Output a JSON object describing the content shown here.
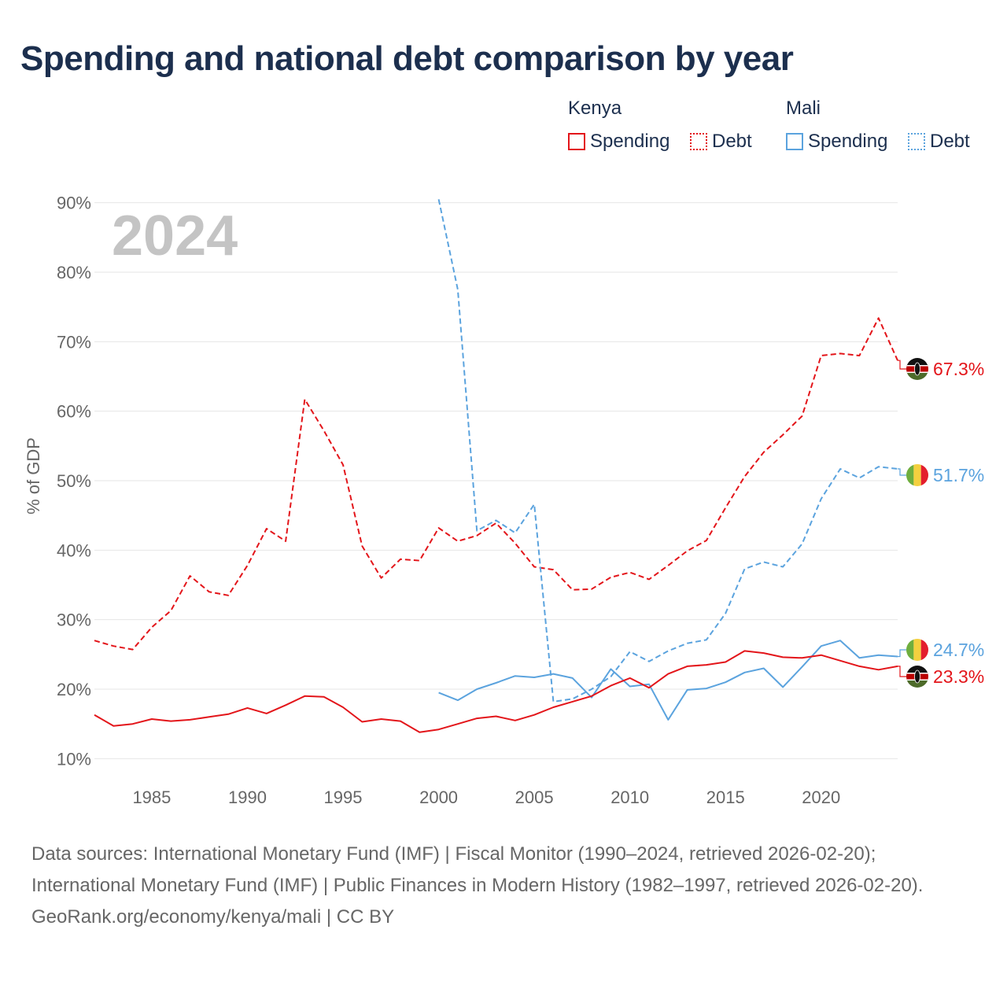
{
  "chart_data": {
    "type": "line",
    "title": "Spending and national debt comparison by year",
    "year_label": "2024",
    "ylabel": "% of GDP",
    "xlabel": "",
    "ylim": [
      8,
      92
    ],
    "xlim": [
      1982,
      2024
    ],
    "y_ticks": [
      10,
      20,
      30,
      40,
      50,
      60,
      70,
      80,
      90
    ],
    "y_tick_labels": [
      "10%",
      "20%",
      "30%",
      "40%",
      "50%",
      "60%",
      "70%",
      "80%",
      "90%"
    ],
    "x_ticks": [
      1985,
      1990,
      1995,
      2000,
      2005,
      2010,
      2015,
      2020
    ],
    "x_tick_labels": [
      "1985",
      "1990",
      "1995",
      "2000",
      "2005",
      "2010",
      "2015",
      "2020"
    ],
    "legend": {
      "groups": [
        {
          "name": "Kenya",
          "items": [
            "Spending",
            "Debt"
          ]
        },
        {
          "name": "Mali",
          "items": [
            "Spending",
            "Debt"
          ]
        }
      ]
    },
    "series": [
      {
        "name": "Kenya Debt",
        "country": "Kenya",
        "measure": "Debt",
        "color": "#e3151a",
        "dashed": true,
        "x": [
          1982,
          1983,
          1984,
          1985,
          1986,
          1987,
          1988,
          1989,
          1990,
          1991,
          1992,
          1993,
          1994,
          1995,
          1996,
          1997,
          1998,
          1999,
          2000,
          2001,
          2002,
          2003,
          2004,
          2005,
          2006,
          2007,
          2008,
          2009,
          2010,
          2011,
          2012,
          2013,
          2014,
          2015,
          2016,
          2017,
          2018,
          2019,
          2020,
          2021,
          2022,
          2023,
          2024
        ],
        "values": [
          27.0,
          26.2,
          25.7,
          28.9,
          31.3,
          36.3,
          34.0,
          33.5,
          37.8,
          43.1,
          41.3,
          61.7,
          57.2,
          52.3,
          40.6,
          36.0,
          38.7,
          38.5,
          43.2,
          41.3,
          42.1,
          43.9,
          41.0,
          37.6,
          37.2,
          34.3,
          34.4,
          36.1,
          36.8,
          35.8,
          37.8,
          39.9,
          41.4,
          46.1,
          50.6,
          54.1,
          56.6,
          59.3,
          68.0,
          68.3,
          68.0,
          73.4,
          67.3
        ],
        "end_label": "67.3%"
      },
      {
        "name": "Mali Debt",
        "country": "Mali",
        "measure": "Debt",
        "color": "#5ba3de",
        "dashed": true,
        "x": [
          2000,
          2001,
          2002,
          2003,
          2004,
          2005,
          2006,
          2007,
          2008,
          2009,
          2010,
          2011,
          2012,
          2013,
          2014,
          2015,
          2016,
          2017,
          2018,
          2019,
          2020,
          2021,
          2022,
          2023,
          2024
        ],
        "values": [
          90.5,
          77.5,
          42.8,
          44.3,
          42.5,
          46.6,
          18.2,
          18.6,
          20.0,
          21.8,
          25.4,
          24.0,
          25.5,
          26.6,
          27.1,
          30.9,
          37.3,
          38.3,
          37.6,
          40.9,
          47.4,
          51.7,
          50.4,
          52.0,
          51.7
        ],
        "end_label": "51.7%"
      },
      {
        "name": "Mali Spending",
        "country": "Mali",
        "measure": "Spending",
        "color": "#5ba3de",
        "dashed": false,
        "x": [
          2000,
          2001,
          2002,
          2003,
          2004,
          2005,
          2006,
          2007,
          2008,
          2009,
          2010,
          2011,
          2012,
          2013,
          2014,
          2015,
          2016,
          2017,
          2018,
          2019,
          2020,
          2021,
          2022,
          2023,
          2024
        ],
        "values": [
          19.5,
          18.4,
          20.0,
          20.9,
          21.9,
          21.7,
          22.2,
          21.6,
          18.8,
          22.9,
          20.4,
          20.7,
          15.6,
          19.9,
          20.1,
          21.0,
          22.4,
          23.0,
          20.3,
          23.2,
          26.2,
          27.0,
          24.5,
          24.9,
          24.7
        ],
        "end_label": "24.7%"
      },
      {
        "name": "Kenya Spending",
        "country": "Kenya",
        "measure": "Spending",
        "color": "#e3151a",
        "dashed": false,
        "x": [
          1982,
          1983,
          1984,
          1985,
          1986,
          1987,
          1988,
          1989,
          1990,
          1991,
          1992,
          1993,
          1994,
          1995,
          1996,
          1997,
          1998,
          1999,
          2000,
          2001,
          2002,
          2003,
          2004,
          2005,
          2006,
          2007,
          2008,
          2009,
          2010,
          2011,
          2012,
          2013,
          2014,
          2015,
          2016,
          2017,
          2018,
          2019,
          2020,
          2021,
          2022,
          2023,
          2024
        ],
        "values": [
          16.3,
          14.7,
          15.0,
          15.7,
          15.4,
          15.6,
          16.0,
          16.4,
          17.3,
          16.5,
          17.7,
          19.0,
          18.9,
          17.4,
          15.3,
          15.7,
          15.4,
          13.8,
          14.2,
          15.0,
          15.8,
          16.1,
          15.5,
          16.3,
          17.4,
          18.2,
          19.0,
          20.5,
          21.6,
          20.2,
          22.2,
          23.3,
          23.5,
          23.9,
          25.5,
          25.2,
          24.6,
          24.5,
          24.9,
          24.1,
          23.3,
          22.8,
          23.3
        ],
        "end_label": "23.3%"
      }
    ]
  },
  "footer": {
    "sources": "Data sources: International Monetary Fund (IMF) | Fiscal Monitor (1990–2024, retrieved 2026-02-20); International Monetary Fund (IMF) | Public Finances in Modern History (1982–1997, retrieved 2026-02-20).",
    "attribution": "GeoRank.org/economy/kenya/mali | CC BY"
  },
  "colors": {
    "kenya": "#e3151a",
    "mali": "#5ba3de",
    "title": "#1c2f4e"
  }
}
